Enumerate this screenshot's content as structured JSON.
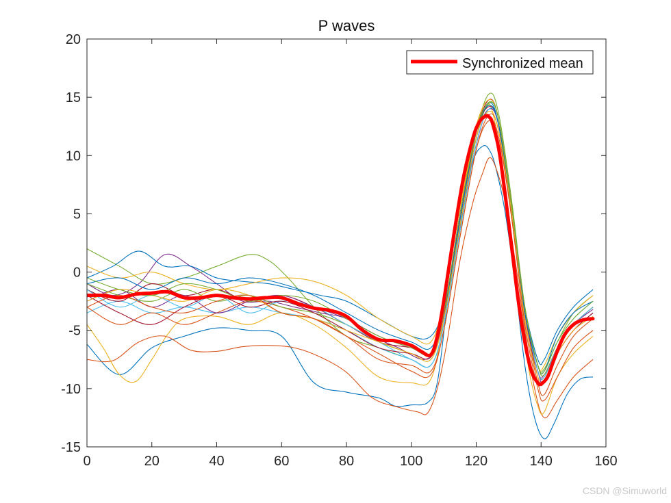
{
  "chart_data": {
    "type": "line",
    "title": "P waves",
    "xlabel": "",
    "ylabel": "",
    "xlim": [
      0,
      160
    ],
    "ylim": [
      -15,
      20
    ],
    "xticks": [
      0,
      20,
      40,
      60,
      80,
      100,
      120,
      140,
      160
    ],
    "yticks": [
      -15,
      -10,
      -5,
      0,
      5,
      10,
      15,
      20
    ],
    "xtick_labels": [
      "0",
      "20",
      "40",
      "60",
      "80",
      "100",
      "120",
      "140",
      "160"
    ],
    "ytick_labels": [
      "-15",
      "-10",
      "-5",
      "0",
      "5",
      "10",
      "15",
      "20"
    ],
    "grid": false,
    "legend": {
      "location": "top-right",
      "entries": [
        "Synchronized mean"
      ]
    },
    "mean_series": {
      "name": "Synchronized mean",
      "color": "#ff0000",
      "x": [
        0,
        5,
        10,
        15,
        20,
        25,
        30,
        35,
        40,
        45,
        50,
        55,
        60,
        65,
        70,
        75,
        80,
        85,
        90,
        95,
        100,
        103,
        106,
        108,
        110,
        113,
        116,
        119,
        121,
        123,
        124,
        125,
        127,
        129,
        131,
        133,
        135,
        137,
        139,
        140,
        142,
        144,
        147,
        150,
        153,
        156
      ],
      "y": [
        -2,
        -2,
        -2.2,
        -1.9,
        -1.8,
        -1.7,
        -2.2,
        -2.2,
        -2,
        -2.2,
        -2.3,
        -2.2,
        -2.2,
        -2.7,
        -3.1,
        -3.3,
        -3.8,
        -5,
        -5.8,
        -5.9,
        -6.3,
        -6.8,
        -7.1,
        -5.5,
        -2.5,
        3,
        8,
        11.5,
        12.9,
        13.4,
        13.3,
        12.8,
        10.5,
        6.5,
        2,
        -2.5,
        -6,
        -8.5,
        -9.5,
        -9.6,
        -9,
        -7.5,
        -5.5,
        -4.5,
        -4.1,
        -4
      ]
    },
    "series": [
      {
        "color": "#0072BD",
        "x": [
          0,
          10,
          20,
          30,
          40,
          50,
          60,
          70,
          80,
          90,
          95,
          100,
          105,
          108,
          111,
          115,
          119,
          122,
          124,
          126,
          129,
          132,
          135,
          138,
          141,
          144,
          148,
          152,
          156
        ],
        "y": [
          -6.2,
          -8.8,
          -6.5,
          -5.5,
          -4.8,
          -5,
          -5.5,
          -9.5,
          -10.3,
          -10.8,
          -11.5,
          -11.4,
          -11.2,
          -9.5,
          -3,
          4.5,
          9.5,
          10.8,
          10.5,
          9,
          5,
          -1,
          -8,
          -12.5,
          -14.3,
          -13,
          -10.5,
          -9.2,
          -9
        ]
      },
      {
        "color": "#D95319",
        "x": [
          0,
          8,
          16,
          24,
          32,
          40,
          48,
          56,
          64,
          72,
          80,
          88,
          96,
          102,
          105,
          108,
          111,
          115,
          119,
          122,
          124,
          126,
          129,
          132,
          135,
          138,
          141,
          145,
          150,
          156
        ],
        "y": [
          -7.5,
          -7.6,
          -6,
          -5.5,
          -6.7,
          -6.8,
          -6.4,
          -6.3,
          -6.5,
          -7.3,
          -8.6,
          -10.8,
          -11.6,
          -12,
          -12.1,
          -10,
          -6,
          1,
          6,
          8.5,
          9.8,
          9,
          6,
          1,
          -5,
          -10,
          -12.5,
          -11,
          -9,
          -7.5
        ]
      },
      {
        "color": "#EDB120",
        "x": [
          0,
          5,
          10,
          15,
          20,
          25,
          30,
          40,
          50,
          60,
          70,
          80,
          90,
          100,
          106,
          110,
          115,
          120,
          123,
          125,
          128,
          132,
          136,
          139,
          141,
          145,
          150,
          156
        ],
        "y": [
          -4.5,
          -6.5,
          -8.8,
          -9.4,
          -7.5,
          -5.3,
          -4,
          -3.8,
          -4.5,
          -3.5,
          -4.5,
          -6.5,
          -9,
          -9.5,
          -9.2,
          -4,
          5,
          12.5,
          14.2,
          13.8,
          9,
          0,
          -8,
          -11.5,
          -12,
          -9,
          -7,
          -5.5
        ]
      },
      {
        "color": "#7E2F8E",
        "x": [
          0,
          8,
          16,
          24,
          32,
          40,
          48,
          56,
          64,
          72,
          80,
          88,
          96,
          104,
          108,
          112,
          117,
          121,
          124,
          127,
          131,
          135,
          139,
          141,
          145,
          150,
          156
        ],
        "y": [
          -1,
          -2,
          -1,
          1.5,
          0.5,
          -1,
          -2.5,
          -2.5,
          -3,
          -3.5,
          -4,
          -5.5,
          -6.5,
          -7.5,
          -6,
          -1,
          7,
          12,
          14,
          12.5,
          5,
          -3.5,
          -8.5,
          -8.8,
          -6.5,
          -4.5,
          -3.2
        ]
      },
      {
        "color": "#77AC30",
        "x": [
          0,
          10,
          20,
          30,
          40,
          50,
          56,
          62,
          70,
          80,
          90,
          100,
          106,
          110,
          115,
          120,
          124,
          127,
          131,
          135,
          139,
          141,
          145,
          150,
          156
        ],
        "y": [
          2,
          0.5,
          -1,
          -0.5,
          0.5,
          1.5,
          1,
          -0.5,
          -3,
          -5.5,
          -6.5,
          -7.5,
          -8,
          -4.5,
          4,
          12,
          15.3,
          13.5,
          6,
          -3,
          -8,
          -8.3,
          -6,
          -3.5,
          -2
        ]
      },
      {
        "color": "#4DBEEE",
        "x": [
          0,
          10,
          20,
          30,
          40,
          50,
          60,
          70,
          80,
          90,
          100,
          106,
          110,
          115,
          120,
          124,
          127,
          131,
          135,
          139,
          141,
          145,
          150,
          156
        ],
        "y": [
          -3.5,
          -2.5,
          -3.5,
          -3,
          -3.5,
          -3,
          -3.5,
          -4,
          -5,
          -6.5,
          -7.5,
          -8,
          -4.5,
          4,
          11.5,
          14.5,
          13,
          5.5,
          -3,
          -8,
          -8.5,
          -6,
          -4,
          -2.5
        ]
      },
      {
        "color": "#A2142F",
        "x": [
          0,
          10,
          20,
          30,
          40,
          50,
          60,
          70,
          80,
          90,
          100,
          106,
          110,
          115,
          120,
          124,
          127,
          131,
          135,
          139,
          141,
          145,
          150,
          156
        ],
        "y": [
          -1.5,
          -2.5,
          -1,
          -2,
          -1.5,
          -2.5,
          -2,
          -3,
          -4.5,
          -6,
          -6.5,
          -7,
          -3.5,
          5,
          12,
          14.8,
          13,
          5.5,
          -3.5,
          -8.5,
          -9,
          -6.5,
          -4.5,
          -3
        ]
      },
      {
        "color": "#0072BD",
        "x": [
          0,
          8,
          16,
          24,
          32,
          40,
          48,
          56,
          64,
          72,
          80,
          90,
          100,
          106,
          110,
          115,
          120,
          124,
          127,
          131,
          135,
          139,
          141,
          145,
          150,
          156
        ],
        "y": [
          -0.5,
          0.5,
          1.8,
          0.5,
          0.5,
          -0.5,
          -0.8,
          -1,
          -1.5,
          -2,
          -2.5,
          -4,
          -5.5,
          -5.5,
          -3,
          4,
          11.5,
          14.5,
          12.5,
          5,
          -3,
          -7.5,
          -7.5,
          -5,
          -3,
          -1.5
        ]
      },
      {
        "color": "#D95319",
        "x": [
          0,
          10,
          20,
          30,
          40,
          50,
          60,
          70,
          80,
          90,
          100,
          106,
          110,
          115,
          120,
          124,
          127,
          131,
          135,
          139,
          141,
          145,
          150,
          156
        ],
        "y": [
          -3,
          -4.5,
          -3.5,
          -4.5,
          -3.5,
          -2.5,
          -3,
          -4,
          -5.5,
          -7,
          -8.5,
          -8.8,
          -5,
          3,
          10.5,
          13.5,
          12,
          4.5,
          -4,
          -9.5,
          -10.5,
          -8,
          -5.5,
          -4
        ]
      },
      {
        "color": "#EDB120",
        "x": [
          0,
          10,
          20,
          30,
          40,
          50,
          60,
          70,
          80,
          90,
          100,
          106,
          110,
          115,
          120,
          124,
          127,
          131,
          135,
          139,
          141,
          145,
          150,
          156
        ],
        "y": [
          0.5,
          -0.5,
          0,
          -1,
          -1.5,
          -1,
          -0.5,
          -0.8,
          -2,
          -4,
          -5.5,
          -6,
          -2.5,
          5.5,
          12.5,
          14.8,
          13,
          5.5,
          -3,
          -8,
          -8,
          -5.5,
          -3.5,
          -2
        ]
      },
      {
        "color": "#7E2F8E",
        "x": [
          0,
          10,
          20,
          30,
          40,
          50,
          60,
          70,
          80,
          90,
          100,
          106,
          110,
          115,
          120,
          124,
          127,
          131,
          135,
          139,
          141,
          145,
          150,
          156
        ],
        "y": [
          -2.5,
          -1.5,
          -3,
          -2,
          -3.5,
          -2.5,
          -2,
          -3,
          -4,
          -5.5,
          -6.5,
          -7,
          -3.5,
          4.5,
          11.5,
          14,
          12.5,
          5,
          -3.5,
          -8.5,
          -9.5,
          -7,
          -5,
          -3.5
        ]
      },
      {
        "color": "#77AC30",
        "x": [
          0,
          10,
          20,
          30,
          40,
          50,
          60,
          70,
          80,
          90,
          100,
          106,
          110,
          115,
          120,
          124,
          127,
          131,
          135,
          139,
          141,
          145,
          150,
          156
        ],
        "y": [
          -1,
          -2,
          -2.5,
          -1.5,
          -2.5,
          -2,
          -3,
          -3.5,
          -4.5,
          -6,
          -7,
          -7.5,
          -4,
          4,
          11.5,
          14.5,
          13,
          5.5,
          -3,
          -8,
          -8.8,
          -6.5,
          -4.5,
          -3
        ]
      },
      {
        "color": "#4DBEEE",
        "x": [
          0,
          10,
          20,
          30,
          40,
          50,
          60,
          70,
          80,
          90,
          100,
          106,
          110,
          115,
          120,
          124,
          127,
          131,
          135,
          139,
          141,
          145,
          150,
          156
        ],
        "y": [
          -1.5,
          -3,
          -2,
          -3,
          -2,
          -3.5,
          -2.5,
          -3,
          -4.5,
          -6,
          -7.5,
          -8,
          -4.5,
          3.5,
          11,
          14,
          12.5,
          5,
          -3.5,
          -8.5,
          -9,
          -6.5,
          -4.5,
          -3
        ]
      },
      {
        "color": "#A2142F",
        "x": [
          0,
          10,
          20,
          30,
          40,
          50,
          60,
          70,
          80,
          90,
          100,
          106,
          110,
          115,
          120,
          124,
          127,
          131,
          135,
          139,
          141,
          145,
          150,
          156
        ],
        "y": [
          -2,
          -3.5,
          -4.5,
          -3,
          -2,
          -3,
          -2.5,
          -3.5,
          -5,
          -6.5,
          -7,
          -7.3,
          -4,
          4.5,
          12,
          14.2,
          12.5,
          5,
          -3.5,
          -9,
          -9.5,
          -7,
          -5,
          -3.5
        ]
      },
      {
        "color": "#0072BD",
        "x": [
          0,
          10,
          20,
          30,
          40,
          50,
          60,
          70,
          80,
          90,
          100,
          106,
          110,
          115,
          120,
          124,
          127,
          131,
          135,
          139,
          141,
          145,
          150,
          156
        ],
        "y": [
          -1,
          -0.5,
          -1.5,
          -0.5,
          -1,
          -0.5,
          -1,
          -2,
          -3.5,
          -5,
          -6,
          -6.5,
          -3.5,
          4.5,
          12,
          14.3,
          12.5,
          5,
          -3.5,
          -8,
          -8.5,
          -5.5,
          -3.5,
          -2.5
        ]
      },
      {
        "color": "#EDB120",
        "x": [
          0,
          10,
          20,
          30,
          40,
          50,
          60,
          70,
          80,
          90,
          100,
          106,
          110,
          115,
          120,
          124,
          127,
          131,
          135,
          139,
          141,
          145,
          150,
          156
        ],
        "y": [
          -2.5,
          -1.5,
          -2,
          -2.5,
          -1.5,
          -2,
          -3.5,
          -4,
          -5,
          -6,
          -7,
          -7.5,
          -4,
          4,
          11.5,
          13.8,
          12,
          5,
          -4,
          -9,
          -9.5,
          -7,
          -5,
          -3.8
        ]
      },
      {
        "color": "#D95319",
        "x": [
          0,
          10,
          20,
          30,
          40,
          50,
          60,
          70,
          80,
          90,
          100,
          106,
          110,
          115,
          120,
          124,
          127,
          131,
          135,
          139,
          141,
          145,
          150,
          156
        ],
        "y": [
          -3,
          -2,
          -3,
          -3.5,
          -2.5,
          -2,
          -3.5,
          -4,
          -5.5,
          -7.5,
          -8,
          -8.5,
          -5,
          3,
          10.5,
          13,
          11.5,
          4.5,
          -4.5,
          -10,
          -11,
          -9,
          -6.5,
          -5
        ]
      },
      {
        "color": "#77AC30",
        "x": [
          0,
          10,
          20,
          30,
          40,
          50,
          60,
          70,
          80,
          90,
          100,
          106,
          110,
          115,
          120,
          124,
          127,
          131,
          135,
          139,
          141,
          145,
          150,
          156
        ],
        "y": [
          -0.5,
          -1.5,
          -2,
          -1,
          -1.5,
          -2.5,
          -2,
          -2.5,
          -4,
          -5.5,
          -6.5,
          -7,
          -3.5,
          5,
          12,
          14.6,
          13,
          5.5,
          -3,
          -8,
          -8.5,
          -6,
          -4,
          -2.5
        ]
      }
    ]
  },
  "watermark": "CSDN @Simuworld"
}
